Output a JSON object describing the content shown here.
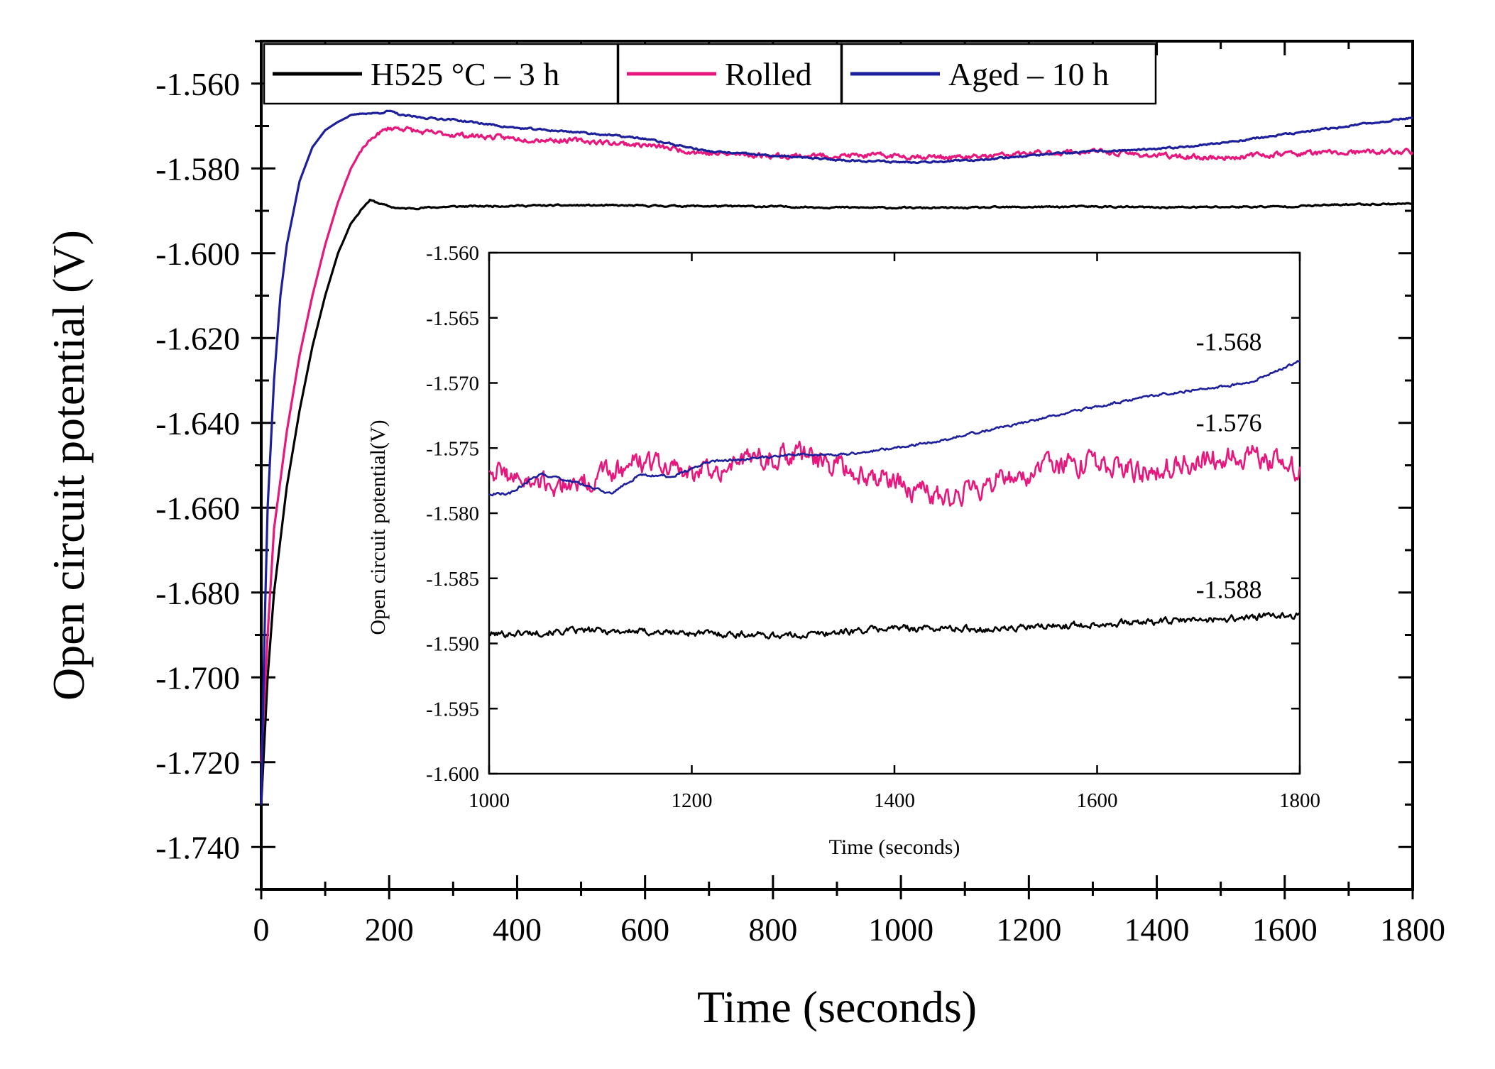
{
  "chart_data": [
    {
      "type": "line",
      "role": "main",
      "xlabel": "Time (seconds)",
      "ylabel": "Open circuit potential (V)",
      "xlim": [
        0,
        1800
      ],
      "ylim": [
        -1.75,
        -1.55
      ],
      "xticks": [
        0,
        200,
        400,
        600,
        800,
        1000,
        1200,
        1400,
        1600,
        1800
      ],
      "yticks": [
        -1.56,
        -1.58,
        -1.6,
        -1.62,
        -1.64,
        -1.66,
        -1.68,
        -1.7,
        -1.72,
        -1.74
      ],
      "xtick_labels": [
        "0",
        "200",
        "400",
        "600",
        "800",
        "1000",
        "1200",
        "1400",
        "1600",
        "1800"
      ],
      "ytick_labels": [
        "-1.560",
        "-1.580",
        "-1.600",
        "-1.620",
        "-1.640",
        "-1.660",
        "-1.680",
        "-1.700",
        "-1.720",
        "-1.740"
      ],
      "legend": [
        "H525 °C – 3 h",
        "Rolled",
        "Aged – 10 h"
      ],
      "series": [
        {
          "name": "H525 °C – 3 h",
          "color": "#000000",
          "x": [
            0,
            10,
            20,
            40,
            60,
            80,
            100,
            120,
            140,
            160,
            170,
            180,
            200,
            220,
            250,
            300,
            400,
            500,
            600,
            700,
            800,
            900,
            1000,
            1100,
            1200,
            1300,
            1400,
            1500,
            1600,
            1700,
            1800
          ],
          "y": [
            -1.73,
            -1.7,
            -1.68,
            -1.655,
            -1.637,
            -1.622,
            -1.61,
            -1.6,
            -1.593,
            -1.589,
            -1.5875,
            -1.588,
            -1.589,
            -1.5895,
            -1.5893,
            -1.589,
            -1.5888,
            -1.5887,
            -1.5888,
            -1.5889,
            -1.589,
            -1.5892,
            -1.5893,
            -1.5893,
            -1.5891,
            -1.589,
            -1.5892,
            -1.5891,
            -1.589,
            -1.5885,
            -1.5883
          ]
        },
        {
          "name": "Rolled",
          "color": "#e8177d",
          "x": [
            0,
            10,
            20,
            40,
            60,
            80,
            100,
            120,
            140,
            160,
            180,
            200,
            220,
            250,
            300,
            400,
            500,
            600,
            700,
            800,
            900,
            1000,
            1100,
            1200,
            1300,
            1400,
            1500,
            1600,
            1700,
            1800
          ],
          "y": [
            -1.72,
            -1.69,
            -1.665,
            -1.642,
            -1.624,
            -1.61,
            -1.598,
            -1.588,
            -1.58,
            -1.575,
            -1.572,
            -1.5705,
            -1.5705,
            -1.5715,
            -1.572,
            -1.573,
            -1.5735,
            -1.5745,
            -1.5765,
            -1.577,
            -1.577,
            -1.577,
            -1.5775,
            -1.5765,
            -1.576,
            -1.577,
            -1.5775,
            -1.5765,
            -1.5763,
            -1.576
          ]
        },
        {
          "name": "Aged – 10 h",
          "color": "#1e1f9c",
          "x": [
            0,
            5,
            10,
            20,
            30,
            40,
            60,
            80,
            100,
            120,
            140,
            160,
            180,
            200,
            220,
            250,
            300,
            400,
            500,
            600,
            700,
            800,
            900,
            1000,
            1100,
            1200,
            1300,
            1400,
            1500,
            1600,
            1700,
            1800
          ],
          "y": [
            -1.73,
            -1.69,
            -1.66,
            -1.63,
            -1.61,
            -1.598,
            -1.583,
            -1.575,
            -1.571,
            -1.569,
            -1.5675,
            -1.567,
            -1.567,
            -1.5665,
            -1.5675,
            -1.568,
            -1.5685,
            -1.5705,
            -1.5715,
            -1.573,
            -1.576,
            -1.577,
            -1.578,
            -1.5785,
            -1.5782,
            -1.577,
            -1.576,
            -1.5755,
            -1.574,
            -1.572,
            -1.57,
            -1.568
          ]
        }
      ]
    },
    {
      "type": "line",
      "role": "inset",
      "xlabel": "Time (seconds)",
      "ylabel": "Open circuit potential(V)",
      "xlim": [
        1000,
        1800
      ],
      "ylim": [
        -1.6,
        -1.56
      ],
      "xticks": [
        1000,
        1200,
        1400,
        1600,
        1800
      ],
      "yticks": [
        -1.56,
        -1.565,
        -1.57,
        -1.575,
        -1.58,
        -1.585,
        -1.59,
        -1.595,
        -1.6
      ],
      "xtick_labels": [
        "1000",
        "1200",
        "1400",
        "1600",
        "1800"
      ],
      "ytick_labels": [
        "-1.560",
        "-1.565",
        "-1.570",
        "-1.575",
        "-1.580",
        "-1.585",
        "-1.590",
        "-1.595",
        "-1.600"
      ],
      "annotations": [
        {
          "text": "-1.568",
          "x": 1730,
          "y": -1.5675
        },
        {
          "text": "-1.576",
          "x": 1730,
          "y": -1.5737
        },
        {
          "text": "-1.588",
          "x": 1730,
          "y": -1.5865
        }
      ],
      "series": [
        {
          "name": "H525 °C – 3 h",
          "color": "#000000",
          "x": [
            1000,
            1100,
            1200,
            1300,
            1400,
            1500,
            1600,
            1700,
            1800
          ],
          "y": [
            -1.5893,
            -1.589,
            -1.5892,
            -1.5894,
            -1.5888,
            -1.5889,
            -1.5885,
            -1.5882,
            -1.5878
          ]
        },
        {
          "name": "Rolled",
          "color": "#e8177d",
          "x": [
            1000,
            1050,
            1100,
            1150,
            1200,
            1250,
            1300,
            1350,
            1400,
            1450,
            1500,
            1550,
            1600,
            1650,
            1700,
            1750,
            1800
          ],
          "y": [
            -1.5765,
            -1.578,
            -1.5775,
            -1.576,
            -1.577,
            -1.576,
            -1.5755,
            -1.5765,
            -1.5775,
            -1.579,
            -1.5775,
            -1.5765,
            -1.576,
            -1.5768,
            -1.576,
            -1.5755,
            -1.5765
          ]
        },
        {
          "name": "Aged – 10 h",
          "color": "#1e1f9c",
          "x": [
            1000,
            1020,
            1050,
            1080,
            1120,
            1150,
            1180,
            1220,
            1260,
            1300,
            1350,
            1400,
            1440,
            1500,
            1560,
            1600,
            1650,
            1700,
            1750,
            1800
          ],
          "y": [
            -1.5785,
            -1.5785,
            -1.577,
            -1.5775,
            -1.5785,
            -1.577,
            -1.5772,
            -1.576,
            -1.5758,
            -1.5755,
            -1.5755,
            -1.575,
            -1.5745,
            -1.5735,
            -1.5725,
            -1.5718,
            -1.571,
            -1.5705,
            -1.57,
            -1.5683
          ]
        }
      ]
    }
  ]
}
